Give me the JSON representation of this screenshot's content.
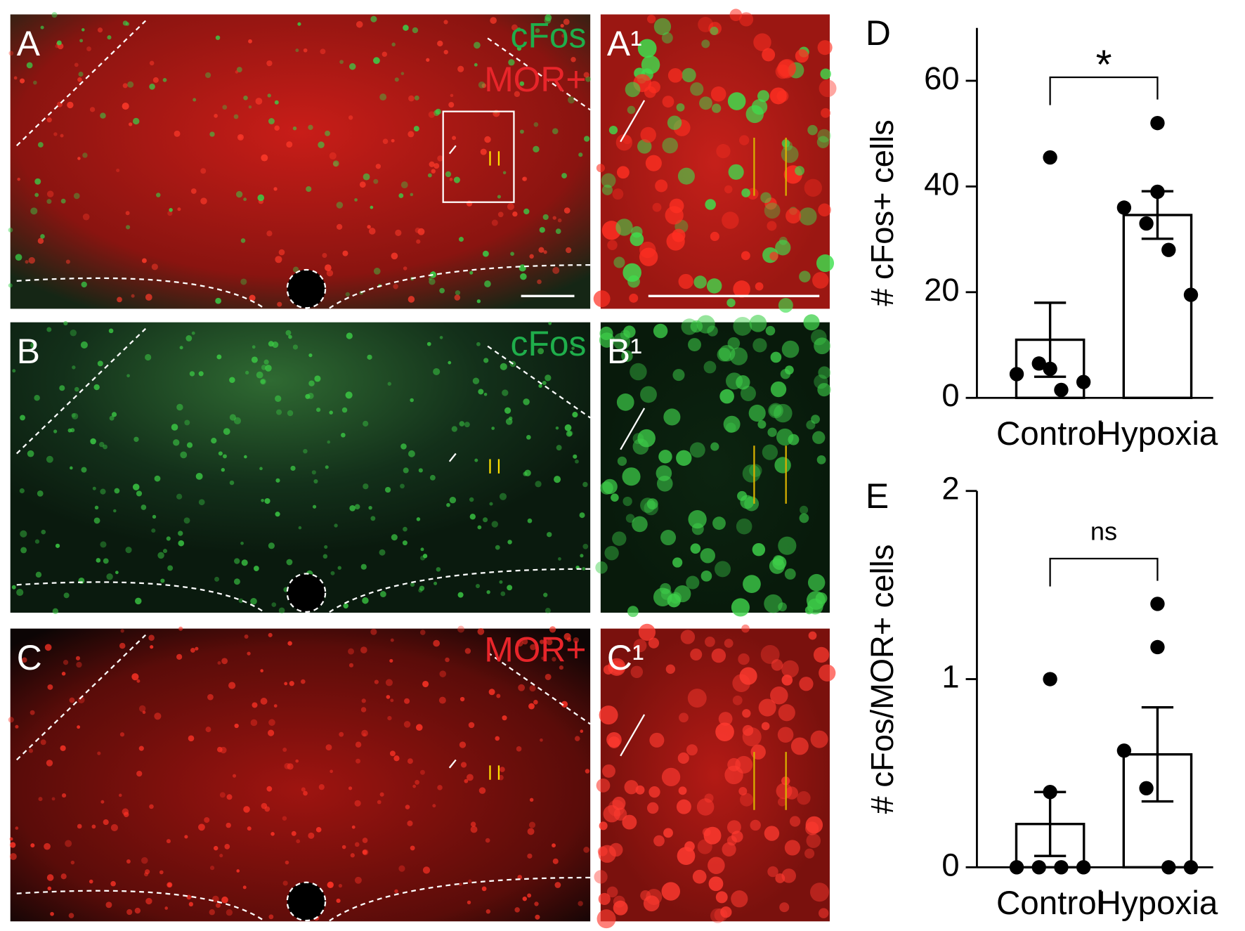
{
  "figure_panels": [
    {
      "label": "A",
      "stains": [
        {
          "text": "cFos",
          "color": "#1fae4b"
        },
        {
          "text": "MOR+",
          "color": "#e8252a"
        }
      ]
    },
    {
      "label": "A¹"
    },
    {
      "label": "B",
      "stains": [
        {
          "text": "cFos",
          "color": "#1fae4b"
        }
      ]
    },
    {
      "label": "B¹"
    },
    {
      "label": "C",
      "stains": [
        {
          "text": "MOR+",
          "color": "#e8252a"
        }
      ]
    },
    {
      "label": "C¹"
    }
  ],
  "chart_data": [
    {
      "type": "bar",
      "panel_label": "D",
      "ylabel": "# cFos+ cells",
      "categories": [
        "Control",
        "Hypoxia"
      ],
      "values": [
        11,
        34.6
      ],
      "errors": [
        7,
        4.5
      ],
      "points": [
        [
          45.5,
          5.5,
          4.5,
          6.5,
          1.5,
          3
        ],
        [
          52,
          39,
          36,
          33,
          28,
          19.5
        ]
      ],
      "color": "#ffffff",
      "ylim": [
        0,
        70
      ],
      "yticks": [
        0,
        20,
        40,
        60
      ],
      "annotation": "*"
    },
    {
      "type": "bar",
      "panel_label": "E",
      "ylabel": "# cFos/MOR+ cells",
      "categories": [
        "Control",
        "Hypoxia"
      ],
      "values": [
        0.23,
        0.6
      ],
      "errors": [
        0.17,
        0.25
      ],
      "points": [
        [
          1,
          0.4,
          0,
          0,
          0,
          0
        ],
        [
          1.4,
          1.17,
          0.62,
          0.42,
          0,
          0
        ]
      ],
      "color": "#ffffff",
      "ylim": [
        0,
        2
      ],
      "yticks": [
        0,
        1,
        2
      ],
      "annotation": "ns"
    }
  ]
}
